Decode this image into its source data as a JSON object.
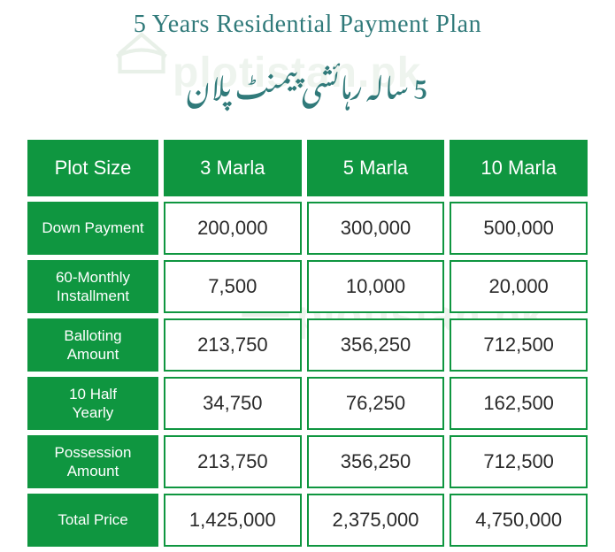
{
  "title_en": "5 Years Residential Payment Plan",
  "title_ur": "5 سالہ رہائشی پیمنٹ پلان",
  "watermark_text": "plotistan.pk",
  "colors": {
    "green": "#0f9640",
    "title_teal": "#307a7a",
    "text_dark": "#2a2a2a",
    "watermark": "rgba(120,170,120,0.18)"
  },
  "table": {
    "columns": [
      "Plot Size",
      "3 Marla",
      "5 Marla",
      "10 Marla"
    ],
    "rows": [
      {
        "label": "Down Payment",
        "values": [
          "200,000",
          "300,000",
          "500,000"
        ]
      },
      {
        "label": "60-Monthly Installment",
        "values": [
          "7,500",
          "10,000",
          "20,000"
        ]
      },
      {
        "label": "Balloting Amount",
        "values": [
          "213,750",
          "356,250",
          "712,500"
        ]
      },
      {
        "label": "10 Half Yearly",
        "values": [
          "34,750",
          "76,250",
          "162,500"
        ]
      },
      {
        "label": "Possession Amount",
        "values": [
          "213,750",
          "356,250",
          "712,500"
        ]
      },
      {
        "label": "Total Price",
        "values": [
          "1,425,000",
          "2,375,000",
          "4,750,000"
        ]
      }
    ]
  }
}
